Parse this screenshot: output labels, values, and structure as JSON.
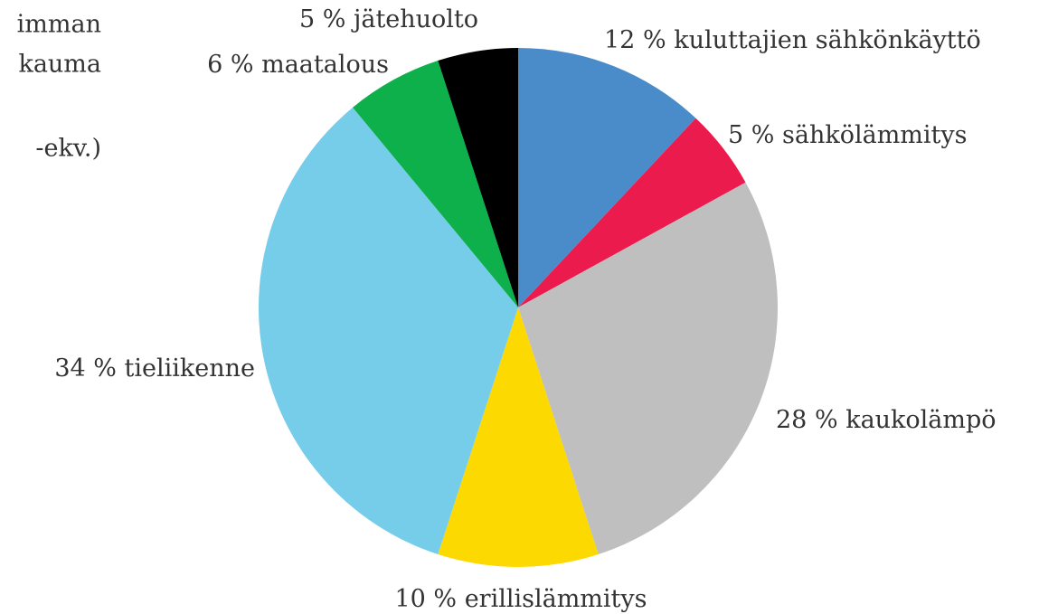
{
  "chart_data": {
    "type": "pie",
    "title_lines": [
      "imman",
      "kauma",
      "-ekv.)"
    ],
    "categories": [
      "kuluttajien sähkönkäyttö",
      "sähkölämmitys",
      "kaukolämpö",
      "erillislämmitys",
      "tieliikenne",
      "maatalous",
      "jätehuolto"
    ],
    "values": [
      12,
      5,
      28,
      10,
      34,
      6,
      5
    ],
    "value_labels": [
      "12 %",
      "5 %",
      "28 %",
      "10 %",
      "34 %",
      "6 %",
      "5 %"
    ],
    "colors": [
      "#4a8cc9",
      "#ec1b4e",
      "#bfbfbf",
      "#fcd900",
      "#76cdea",
      "#0db04b",
      "#000000"
    ]
  }
}
